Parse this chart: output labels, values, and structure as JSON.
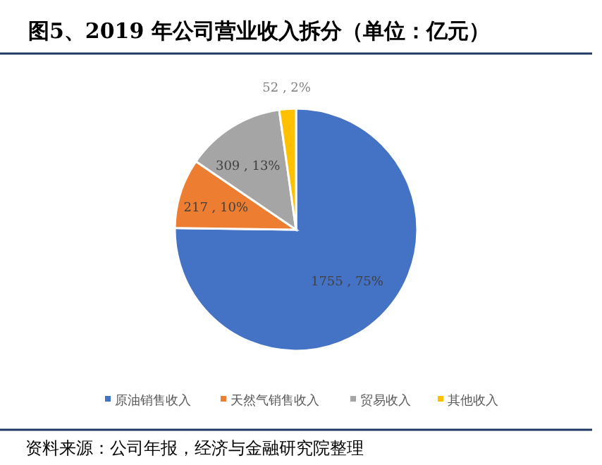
{
  "chart_data": {
    "type": "pie",
    "title": "图5、2019 年公司营业收入拆分（单位：亿元）",
    "categories": [
      "原油销售收入",
      "天然气销售收入",
      "贸易收入",
      "其他收入"
    ],
    "values": [
      1755,
      217,
      309,
      52
    ],
    "colors": [
      "#4472c4",
      "#ed7d31",
      "#a5a5a5",
      "#ffc000"
    ],
    "value_labels": [
      "1755 , 75%",
      "217 , 10%",
      "309 , 13%",
      "52 , 2%"
    ],
    "legend": "bottom",
    "annotations": [
      "资料来源：公司年报，经济与金融研究院整理"
    ]
  }
}
